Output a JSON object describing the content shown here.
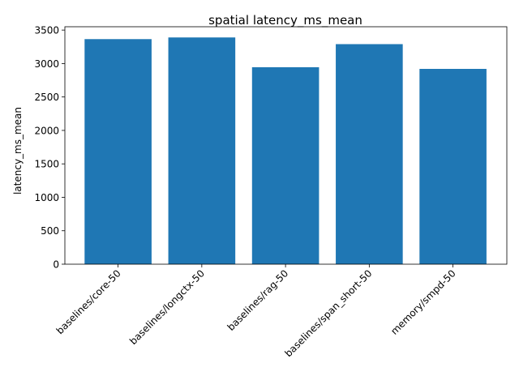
{
  "chart_data": {
    "type": "bar",
    "title": "spatial latency_ms_mean",
    "xlabel": "",
    "ylabel": "latency_ms_mean",
    "categories": [
      "baselines/core-50",
      "baselines/longctx-50",
      "baselines/rag-50",
      "baselines/span_short-50",
      "memory/smpd-50"
    ],
    "values": [
      3365,
      3390,
      2945,
      3290,
      2920
    ],
    "ylim": [
      0,
      3550
    ],
    "yticks": [
      0,
      500,
      1000,
      1500,
      2000,
      2500,
      3000,
      3500
    ],
    "bar_color": "#1f77b4",
    "grid": false
  }
}
